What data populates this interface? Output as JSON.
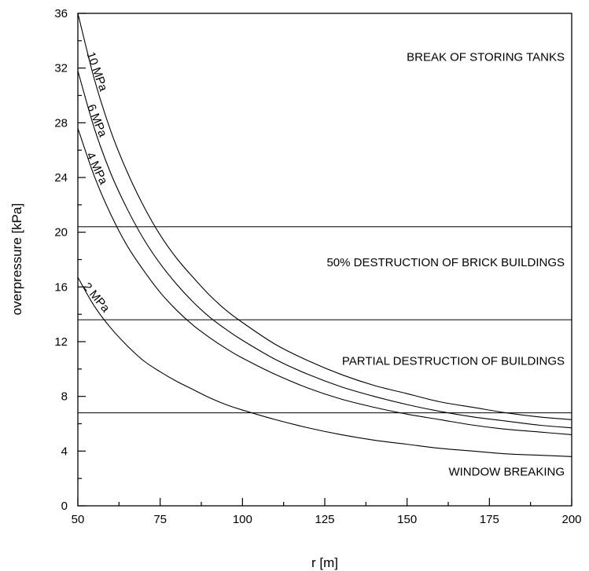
{
  "chart_data": {
    "type": "line",
    "title": "",
    "xlabel": "r [m]",
    "ylabel": "overpressure [kPa]",
    "xlim": [
      50,
      200
    ],
    "ylim": [
      0,
      36
    ],
    "x_ticks": [
      50,
      75,
      100,
      125,
      150,
      175,
      200
    ],
    "y_ticks": [
      0,
      4,
      8,
      12,
      16,
      20,
      24,
      28,
      32,
      36
    ],
    "x": [
      50,
      55,
      60,
      65,
      70,
      75,
      80,
      85,
      90,
      95,
      100,
      110,
      120,
      130,
      140,
      150,
      160,
      170,
      180,
      190,
      200
    ],
    "series": [
      {
        "name": "10 MPa",
        "values": [
          36.0,
          31.2,
          27.4,
          24.4,
          21.9,
          19.8,
          18.1,
          16.7,
          15.4,
          14.3,
          13.4,
          11.8,
          10.6,
          9.6,
          8.8,
          8.2,
          7.6,
          7.2,
          6.8,
          6.5,
          6.3
        ]
      },
      {
        "name": "6 MPa",
        "values": [
          31.8,
          27.6,
          24.3,
          21.7,
          19.5,
          17.7,
          16.2,
          14.9,
          13.8,
          12.9,
          12.1,
          10.7,
          9.6,
          8.7,
          8.0,
          7.4,
          6.9,
          6.5,
          6.2,
          5.9,
          5.7
        ]
      },
      {
        "name": "4 MPa",
        "values": [
          27.6,
          24.1,
          21.3,
          19.0,
          17.2,
          15.6,
          14.3,
          13.2,
          12.3,
          11.5,
          10.8,
          9.6,
          8.6,
          7.8,
          7.2,
          6.7,
          6.3,
          5.9,
          5.6,
          5.4,
          5.2
        ]
      },
      {
        "name": "2 MPa",
        "values": [
          16.7,
          14.6,
          13.0,
          11.7,
          10.6,
          9.8,
          9.1,
          8.5,
          7.9,
          7.4,
          7.0,
          6.3,
          5.7,
          5.2,
          4.8,
          4.5,
          4.2,
          4.0,
          3.8,
          3.7,
          3.6
        ]
      }
    ],
    "thresholds": [
      {
        "value": 20.4,
        "label": "50% DESTRUCTION OF BRICK BUILDINGS"
      },
      {
        "value": 13.6,
        "label": "PARTIAL DESTRUCTION OF BUILDINGS"
      },
      {
        "value": 6.8,
        "label": ""
      }
    ],
    "zones": [
      {
        "label": "BREAK OF STORING TANKS",
        "y": 32.8
      },
      {
        "label": "50% DESTRUCTION OF BRICK BUILDINGS",
        "y": 17.8
      },
      {
        "label": "PARTIAL DESTRUCTION OF BUILDINGS",
        "y": 10.6
      },
      {
        "label": "WINDOW BREAKING",
        "y": 2.5
      }
    ],
    "grid": false,
    "legend": "none"
  }
}
